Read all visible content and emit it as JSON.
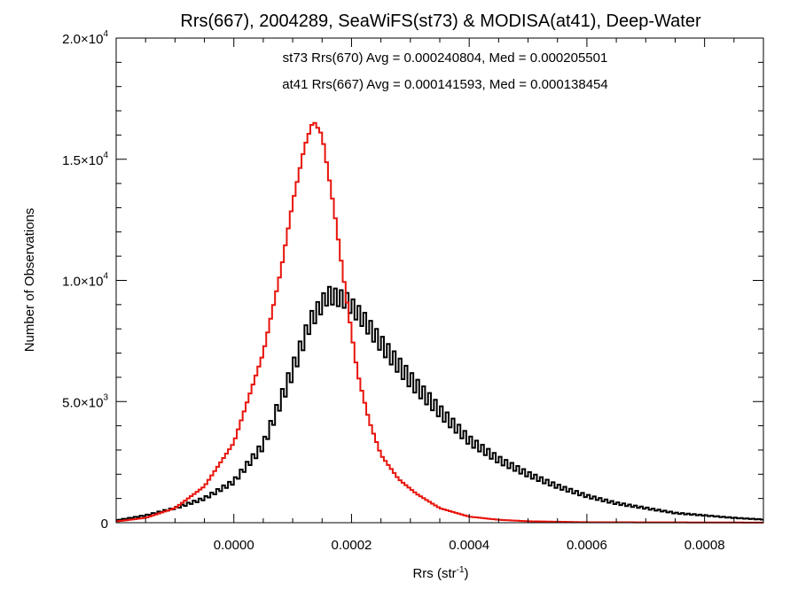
{
  "colors": {
    "st73": "#000000",
    "at41": "#e8140c",
    "axis": "#000000",
    "background": "#ffffff"
  },
  "chart_data": {
    "type": "line",
    "style": "step-histogram",
    "title": "Rrs(667), 2004289, SeaWiFS(st73) & MODISA(at41), Deep-Water",
    "xlabel": {
      "base": "Rrs (str",
      "sup": "-1",
      "close": ")"
    },
    "ylabel": "Number of Observations",
    "xlim": [
      -0.0002,
      0.0009
    ],
    "ylim": [
      0,
      20000
    ],
    "x_ticks": [
      {
        "value": 0.0,
        "label": "0.0000"
      },
      {
        "value": 0.0002,
        "label": "0.0002"
      },
      {
        "value": 0.0004,
        "label": "0.0004"
      },
      {
        "value": 0.0006,
        "label": "0.0006"
      },
      {
        "value": 0.0008,
        "label": "0.0008"
      }
    ],
    "y_ticks": [
      {
        "value": 0,
        "mant": "0",
        "exp": ""
      },
      {
        "value": 5000,
        "mant": "5.0×10",
        "exp": "3"
      },
      {
        "value": 10000,
        "mant": "1.0×10",
        "exp": "4"
      },
      {
        "value": 15000,
        "mant": "1.5×10",
        "exp": "4"
      },
      {
        "value": 20000,
        "mant": "2.0×10",
        "exp": "4"
      }
    ],
    "annotations": [
      {
        "text": "st73 Rrs(670) Avg = 0.000240804, Med = 0.000205501",
        "series": "st73"
      },
      {
        "text": "at41 Rrs(667) Avg = 0.000141593, Med = 0.000138454",
        "series": "at41"
      }
    ],
    "series": [
      {
        "name": "st73 Rrs(670)",
        "color": "#000000",
        "noise": 350,
        "x": [
          -0.0002,
          -0.00015,
          -0.0001,
          -5e-05,
          0.0,
          5e-05,
          0.0001,
          0.00013,
          0.00016,
          0.00019,
          0.00022,
          0.00025,
          0.0003,
          0.00035,
          0.0004,
          0.00045,
          0.0005,
          0.00055,
          0.0006,
          0.00065,
          0.0007,
          0.00075,
          0.0008,
          0.00085,
          0.0009
        ],
        "y": [
          100,
          300,
          600,
          1000,
          1700,
          3200,
          6300,
          8300,
          9400,
          9200,
          8400,
          7400,
          5900,
          4600,
          3400,
          2600,
          2000,
          1500,
          1100,
          800,
          600,
          400,
          300,
          200,
          130
        ]
      },
      {
        "name": "at41 Rrs(667)",
        "color": "#e8140c",
        "noise": 0,
        "x": [
          -0.0002,
          -0.00015,
          -0.0001,
          -5e-05,
          0.0,
          5e-05,
          8e-05,
          0.0001,
          0.00012,
          0.000135,
          0.00015,
          0.00017,
          0.00019,
          0.00021,
          0.00023,
          0.00025,
          0.00028,
          0.00031,
          0.00035,
          0.0004,
          0.00045,
          0.0005,
          0.0006,
          0.0009
        ],
        "y": [
          50,
          200,
          600,
          1500,
          3300,
          7000,
          10400,
          13200,
          15500,
          16600,
          16000,
          13000,
          9500,
          6200,
          4200,
          2800,
          1800,
          1200,
          600,
          250,
          120,
          60,
          20,
          5
        ]
      }
    ]
  }
}
